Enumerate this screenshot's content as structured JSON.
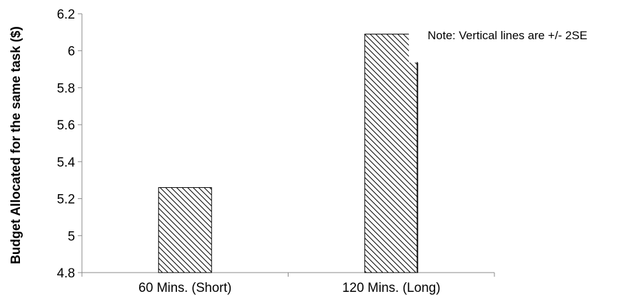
{
  "chart_data": {
    "type": "bar",
    "title": "",
    "xlabel": "",
    "ylabel": "Budget Allocated for the same task ($)",
    "categories": [
      "60 Mins. (Short)",
      "120 Mins. (Long)"
    ],
    "values": [
      5.26,
      6.09
    ],
    "ylim": [
      4.8,
      6.2
    ],
    "yticks": [
      4.8,
      5,
      5.2,
      5.4,
      5.6,
      5.8,
      6,
      6.2
    ],
    "ytick_labels": [
      "4.8",
      "5",
      "5.2",
      "5.4",
      "5.6",
      "5.8",
      "6",
      "6.2"
    ],
    "error_bar_upper": [
      null,
      5.94
    ],
    "grid": false,
    "legend": "none",
    "bar_fill": "diagonal-hatch",
    "bar_color": "#000000",
    "annotation": "Note:  Vertical lines are +/- 2SE"
  }
}
